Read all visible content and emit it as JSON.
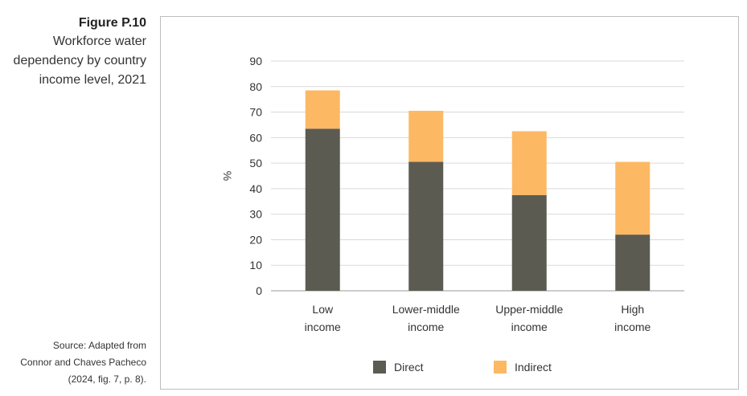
{
  "figure": {
    "number": "Figure P.10",
    "title_lines": [
      "Workforce water",
      "dependency by country",
      "income level, 2021"
    ],
    "source_lines": [
      "Source: Adapted from",
      "Connor and Chaves Pacheco",
      "(2024, fig. 7, p. 8)."
    ]
  },
  "colors": {
    "direct": "#5c5b52",
    "indirect": "#fdb863",
    "grid": "#d9d9d9",
    "axis": "#999999"
  },
  "chart_data": {
    "type": "bar",
    "stacked": true,
    "categories": [
      [
        "Low",
        "income"
      ],
      [
        "Lower-middle",
        "income"
      ],
      [
        "Upper-middle",
        "income"
      ],
      [
        "High",
        "income"
      ]
    ],
    "series": [
      {
        "name": "Direct",
        "values": [
          63.5,
          50.5,
          37.5,
          22
        ]
      },
      {
        "name": "Indirect",
        "values": [
          15,
          20,
          25,
          28.5
        ]
      }
    ],
    "ylabel": "%",
    "ylim": [
      0,
      90
    ],
    "yticks": [
      0,
      10,
      20,
      30,
      40,
      50,
      60,
      70,
      80,
      90
    ],
    "grid": true,
    "legend": "bottom-center"
  }
}
